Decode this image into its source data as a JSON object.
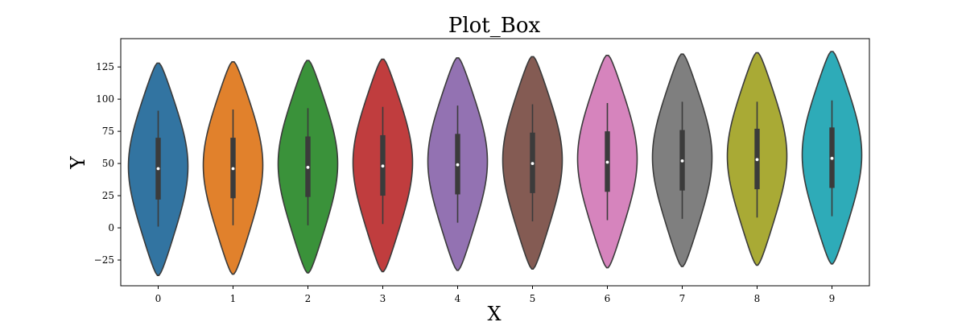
{
  "chart_data": {
    "type": "violin",
    "title": "Plot_Box",
    "xlabel": "X",
    "ylabel": "Y",
    "categories": [
      "0",
      "1",
      "2",
      "3",
      "4",
      "5",
      "6",
      "7",
      "8",
      "9"
    ],
    "ylim": [
      -45,
      147
    ],
    "yticks": [
      -25,
      0,
      25,
      50,
      75,
      100,
      125
    ],
    "ytick_labels": [
      "−25",
      "0",
      "25",
      "50",
      "75",
      "100",
      "125"
    ],
    "grid": false,
    "series": [
      {
        "color": "#3274a1",
        "violin_min": -37,
        "violin_max": 128,
        "q1": 22,
        "median": 46,
        "q3": 70,
        "whisker_low": 1,
        "whisker_high": 91
      },
      {
        "color": "#e1812c",
        "violin_min": -36,
        "violin_max": 129,
        "q1": 23,
        "median": 46,
        "q3": 70,
        "whisker_low": 2,
        "whisker_high": 92
      },
      {
        "color": "#3a923a",
        "violin_min": -35,
        "violin_max": 130,
        "q1": 24,
        "median": 47,
        "q3": 71,
        "whisker_low": 2,
        "whisker_high": 93
      },
      {
        "color": "#c03d3e",
        "violin_min": -34,
        "violin_max": 131,
        "q1": 25,
        "median": 48,
        "q3": 72,
        "whisker_low": 3,
        "whisker_high": 94
      },
      {
        "color": "#9372b2",
        "violin_min": -33,
        "violin_max": 132,
        "q1": 26,
        "median": 49,
        "q3": 73,
        "whisker_low": 4,
        "whisker_high": 95
      },
      {
        "color": "#845b53",
        "violin_min": -32,
        "violin_max": 133,
        "q1": 27,
        "median": 50,
        "q3": 74,
        "whisker_low": 5,
        "whisker_high": 96
      },
      {
        "color": "#d684bd",
        "violin_min": -31,
        "violin_max": 134,
        "q1": 28,
        "median": 51,
        "q3": 75,
        "whisker_low": 6,
        "whisker_high": 97
      },
      {
        "color": "#7f7f7f",
        "violin_min": -30,
        "violin_max": 135,
        "q1": 29,
        "median": 52,
        "q3": 76,
        "whisker_low": 7,
        "whisker_high": 98
      },
      {
        "color": "#a9aa35",
        "violin_min": -29,
        "violin_max": 136,
        "q1": 30,
        "median": 53,
        "q3": 77,
        "whisker_low": 8,
        "whisker_high": 98
      },
      {
        "color": "#2eabb8",
        "violin_min": -28,
        "violin_max": 137,
        "q1": 31,
        "median": 54,
        "q3": 78,
        "whisker_low": 9,
        "whisker_high": 99
      }
    ]
  }
}
